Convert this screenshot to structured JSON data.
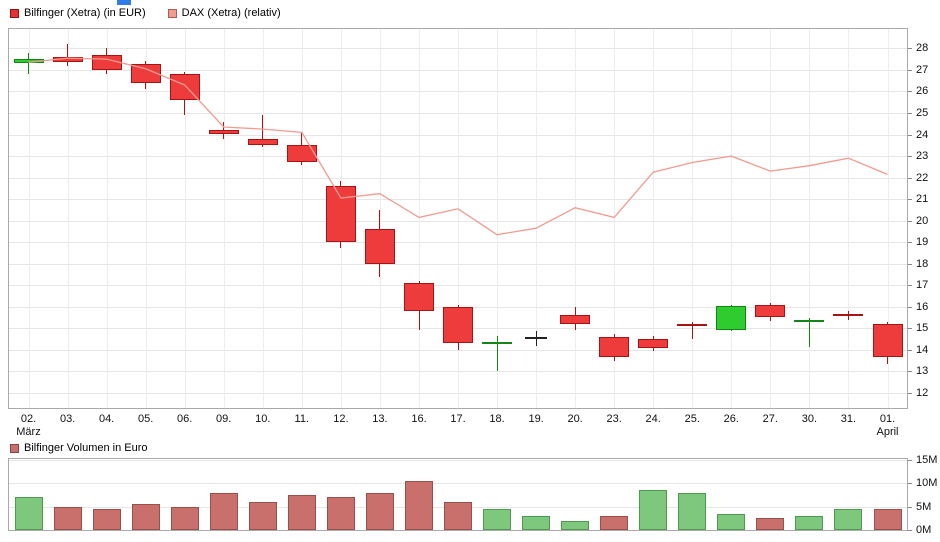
{
  "price_chart": {
    "legend": [
      {
        "label": "Bilfinger (Xetra) (in EUR)",
        "color": "#e83030",
        "border": "#8c1616"
      },
      {
        "label": "DAX (Xetra) (relativ)",
        "color": "#f29b91",
        "border": "#b05a50"
      }
    ]
  },
  "volume_chart": {
    "legend": [
      {
        "label": "Bilfinger Volumen in Euro",
        "color": "#c9706c",
        "border": "#8c4440"
      }
    ]
  },
  "chart_data": [
    {
      "type": "candlestick",
      "title": "Bilfinger (Xetra) (in EUR)",
      "ylabel": "EUR",
      "ylim": [
        11.3,
        28.9
      ],
      "yticks": [
        12,
        13,
        14,
        15,
        16,
        17,
        18,
        19,
        20,
        21,
        22,
        23,
        24,
        25,
        26,
        27,
        28
      ],
      "grid": true,
      "dates": [
        "02.",
        "03.",
        "04.",
        "05.",
        "06.",
        "09.",
        "10.",
        "11.",
        "12.",
        "13.",
        "16.",
        "17.",
        "18.",
        "19.",
        "20.",
        "23.",
        "24.",
        "25.",
        "26.",
        "27.",
        "30.",
        "31.",
        "01."
      ],
      "date_sublabels": {
        "0": "März",
        "22": "April"
      },
      "candles": [
        {
          "o": 27.3,
          "h": 27.8,
          "l": 26.8,
          "c": 27.5
        },
        {
          "o": 27.6,
          "h": 28.2,
          "l": 27.2,
          "c": 27.35
        },
        {
          "o": 27.7,
          "h": 28.0,
          "l": 26.8,
          "c": 27.0
        },
        {
          "o": 27.3,
          "h": 27.4,
          "l": 26.1,
          "c": 26.4
        },
        {
          "o": 26.8,
          "h": 26.9,
          "l": 24.9,
          "c": 25.6
        },
        {
          "o": 24.2,
          "h": 24.6,
          "l": 23.8,
          "c": 24.0
        },
        {
          "o": 23.8,
          "h": 24.9,
          "l": 23.4,
          "c": 23.5
        },
        {
          "o": 23.5,
          "h": 24.1,
          "l": 22.6,
          "c": 22.7
        },
        {
          "o": 21.6,
          "h": 21.85,
          "l": 18.75,
          "c": 19.0
        },
        {
          "o": 19.6,
          "h": 20.5,
          "l": 17.4,
          "c": 18.0
        },
        {
          "o": 17.1,
          "h": 17.2,
          "l": 14.9,
          "c": 15.8
        },
        {
          "o": 16.0,
          "h": 16.1,
          "l": 14.0,
          "c": 14.3
        },
        {
          "o": 14.25,
          "h": 14.65,
          "l": 13.0,
          "c": 14.35
        },
        {
          "o": 14.6,
          "h": 14.9,
          "l": 14.2,
          "c": 14.6
        },
        {
          "o": 15.6,
          "h": 16.0,
          "l": 14.9,
          "c": 15.2
        },
        {
          "o": 14.6,
          "h": 14.75,
          "l": 13.5,
          "c": 13.65
        },
        {
          "o": 14.5,
          "h": 14.65,
          "l": 13.95,
          "c": 14.1
        },
        {
          "o": 15.2,
          "h": 15.3,
          "l": 14.5,
          "c": 15.1
        },
        {
          "o": 14.9,
          "h": 16.1,
          "l": 14.85,
          "c": 16.05
        },
        {
          "o": 16.1,
          "h": 16.2,
          "l": 15.35,
          "c": 15.5
        },
        {
          "o": 15.3,
          "h": 15.5,
          "l": 14.15,
          "c": 15.4
        },
        {
          "o": 15.65,
          "h": 15.8,
          "l": 15.4,
          "c": 15.55
        },
        {
          "o": 15.2,
          "h": 15.3,
          "l": 13.35,
          "c": 13.65
        }
      ],
      "overlay_line": {
        "name": "DAX (Xetra) (relativ)",
        "values": [
          27.35,
          27.55,
          27.5,
          27.05,
          26.3,
          24.35,
          24.25,
          24.1,
          21.05,
          21.25,
          20.15,
          20.55,
          19.35,
          19.65,
          20.6,
          20.15,
          22.25,
          22.7,
          23.0,
          22.3,
          22.55,
          22.9,
          22.15
        ]
      }
    },
    {
      "type": "bar",
      "title": "Bilfinger Volumen in Euro",
      "ylim": [
        0,
        15.9
      ],
      "yticks": [
        {
          "v": 0,
          "label": "0M"
        },
        {
          "v": 5,
          "label": "5M"
        },
        {
          "v": 10,
          "label": "10M"
        },
        {
          "v": 15,
          "label": "15M"
        }
      ],
      "values": [
        7.0,
        5.0,
        4.5,
        5.5,
        5.0,
        8.0,
        6.0,
        7.5,
        7.0,
        8.0,
        10.5,
        6.0,
        4.5,
        3.0,
        2.0,
        3.0,
        8.5,
        8.0,
        3.5,
        2.5,
        3.0,
        4.5,
        4.5
      ],
      "directions": [
        "up",
        "down",
        "down",
        "down",
        "down",
        "down",
        "down",
        "down",
        "down",
        "down",
        "down",
        "down",
        "up",
        "up",
        "up",
        "down",
        "up",
        "up",
        "up",
        "down",
        "up",
        "up",
        "down"
      ]
    }
  ],
  "colors": {
    "candle_up_fill": "#2ecc2e",
    "candle_up_border": "#158515",
    "candle_down_fill": "#ee3b3b",
    "candle_down_border": "#a81414",
    "doji": "#222222",
    "overlay_line": "#f29b91",
    "volume_up_fill": "#7dc87d",
    "volume_up_border": "#4e9a4e",
    "volume_down_fill": "#c9706c",
    "volume_down_border": "#99504c",
    "grid_h": "#e6e6e6",
    "grid_v": "#ededed",
    "plot_border": "#aaaaaa",
    "axis_text": "#111111",
    "artifact_blue": "#2f7ce8"
  }
}
